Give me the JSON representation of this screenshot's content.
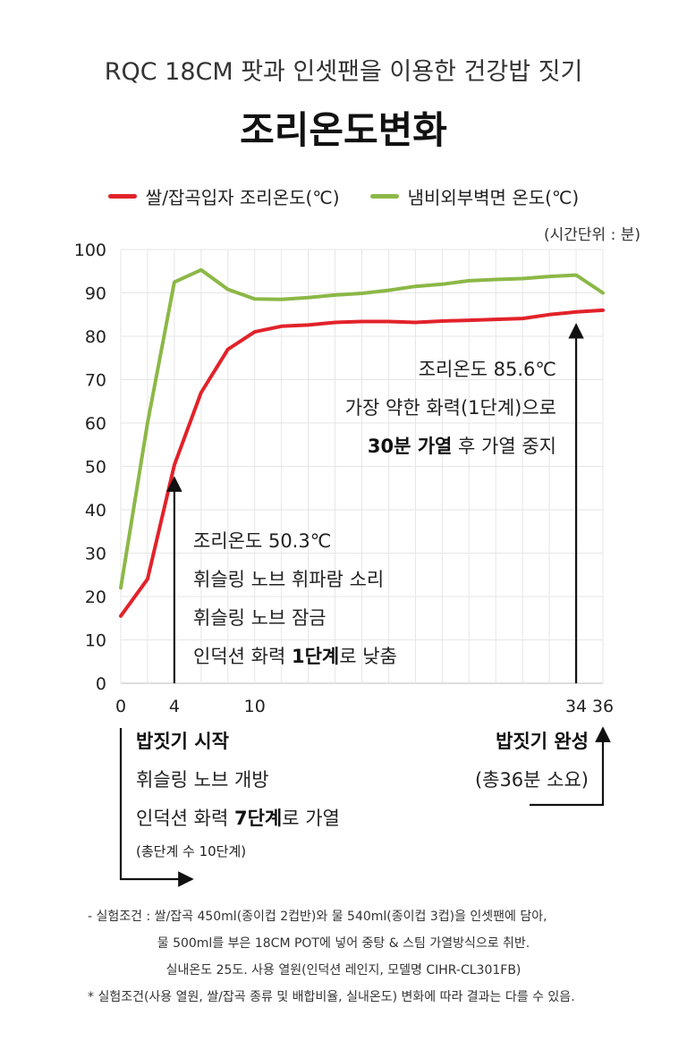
{
  "header": {
    "subtitle": "RQC 18CM 팟과 인셋팬을 이용한 건강밥 짓기",
    "title": "조리온도변화"
  },
  "legend": {
    "red": "쌀/잡곡입자 조리온도(℃)",
    "green": "냄비외부벽면 온도(℃)"
  },
  "unit_note": "(시간단위 : 분)",
  "colors": {
    "red": "#e2222a",
    "green": "#8cb847",
    "grid": "#e6e6e6",
    "axis": "#bbbbbb"
  },
  "chart_data": {
    "type": "line",
    "x_ticks": [
      0,
      4,
      10,
      34,
      36
    ],
    "y_ticks": [
      0,
      10,
      20,
      30,
      40,
      50,
      60,
      70,
      80,
      90,
      100
    ],
    "xlim": [
      0,
      36
    ],
    "ylim": [
      0,
      100
    ],
    "grid": true,
    "legend_position": "top",
    "series": [
      {
        "name": "쌀/잡곡입자 조리온도(℃)",
        "color": "#e2222a",
        "x": [
          0,
          2,
          4,
          6,
          8,
          10,
          12,
          14,
          16,
          18,
          20,
          22,
          24,
          26,
          28,
          30,
          32,
          34,
          36
        ],
        "y": [
          15.5,
          24,
          50.3,
          67,
          77,
          81,
          82.3,
          82.6,
          83.2,
          83.4,
          83.4,
          83.2,
          83.5,
          83.7,
          83.9,
          84.1,
          85,
          85.6,
          86
        ]
      },
      {
        "name": "냄비외부벽면 온도(℃)",
        "color": "#8cb847",
        "x": [
          0,
          2,
          4,
          6,
          8,
          10,
          12,
          14,
          16,
          18,
          20,
          22,
          24,
          26,
          28,
          30,
          32,
          34,
          36
        ],
        "y": [
          22,
          60,
          92.5,
          95.3,
          90.8,
          88.6,
          88.5,
          88.9,
          89.5,
          89.9,
          90.6,
          91.5,
          92,
          92.8,
          93.1,
          93.3,
          93.8,
          94.1,
          90
        ]
      }
    ]
  },
  "annotations": {
    "right": {
      "line1": "조리온도 85.6℃",
      "line2": "가장 약한 화력(1단계)으로",
      "line3_bold": "30분 가열",
      "line3_rest": " 후 가열 중지"
    },
    "left": {
      "line1": "조리온도 50.3℃",
      "line2": "휘슬링 노브 휘파람 소리",
      "line3": "휘슬링 노브 잠금",
      "line4_pre": "인덕션 화력 ",
      "line4_bold": "1단계",
      "line4_post": "로 낮춤"
    },
    "start": {
      "title": "밥짓기 시작",
      "line1": "휘슬링 노브 개방",
      "line2_pre": "인덕션 화력 ",
      "line2_bold": "7단계",
      "line2_post": "로 가열",
      "line3": "(총단계 수 10단계)"
    },
    "end": {
      "title": "밥짓기 완성",
      "line1": "(총36분 소요)"
    }
  },
  "notes": {
    "line1": "- 실험조건 : 쌀/잡곡 450ml(종이컵 2컵반)와 물 540ml(종이컵 3컵)을 인셋팬에 담아,",
    "line2": "물 500ml를 부은 18CM POT에 넣어 중탕 & 스팀 가열방식으로 취반.",
    "line3": "실내온도 25도. 사용 열원(인덕션 레인지, 모델명 CIHR-CL301FB)",
    "line4": "* 실험조건(사용 열원, 쌀/잡곡 종류 및 배합비율, 실내온도) 변화에 따라 결과는 다를 수 있음."
  }
}
